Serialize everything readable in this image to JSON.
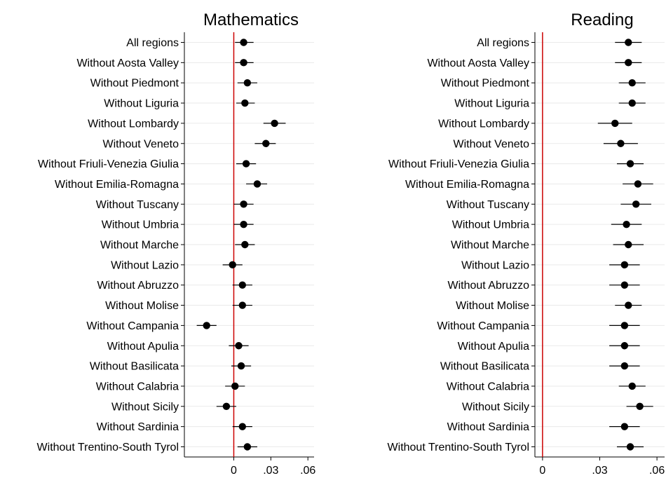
{
  "colors": {
    "zero_line": "#cc0000",
    "grid": "#eaeaea",
    "axis": "#000000",
    "point": "#000000",
    "ci": "#000000"
  },
  "chart_data": [
    {
      "type": "scatter",
      "title": "Mathematics",
      "orientation": "horizontal-dot-whisker",
      "xlim": [
        -0.04,
        0.065
      ],
      "xticks": [
        0,
        0.03,
        0.06
      ],
      "xtick_labels": [
        "0",
        ".03",
        ".06"
      ],
      "reference_line": 0,
      "grid": true,
      "categories": [
        "All regions",
        "Without Aosta Valley",
        "Without Piedmont",
        "Without Liguria",
        "Without Lombardy",
        "Without Veneto",
        "Without Friuli-Venezia Giulia",
        "Without Emilia-Romagna",
        "Without Tuscany",
        "Without Umbria",
        "Without Marche",
        "Without Lazio",
        "Without Abruzzo",
        "Without Molise",
        "Without Campania",
        "Without Apulia",
        "Without Basilicata",
        "Without Calabria",
        "Without Sicily",
        "Without Sardinia",
        "Without Trentino-South Tyrol"
      ],
      "values": [
        0.008,
        0.008,
        0.011,
        0.009,
        0.033,
        0.026,
        0.01,
        0.019,
        0.008,
        0.008,
        0.009,
        -0.001,
        0.007,
        0.007,
        -0.022,
        0.004,
        0.006,
        0.001,
        -0.006,
        0.007,
        0.011
      ],
      "ci_low": [
        0.001,
        0.001,
        0.003,
        0.002,
        0.024,
        0.017,
        0.002,
        0.01,
        0.0,
        0.0,
        0.001,
        -0.009,
        -0.001,
        -0.001,
        -0.03,
        -0.004,
        -0.002,
        -0.007,
        -0.014,
        -0.001,
        0.003
      ],
      "ci_high": [
        0.016,
        0.016,
        0.019,
        0.017,
        0.042,
        0.034,
        0.018,
        0.027,
        0.016,
        0.016,
        0.017,
        0.007,
        0.015,
        0.015,
        -0.014,
        0.012,
        0.014,
        0.009,
        0.002,
        0.015,
        0.019
      ]
    },
    {
      "type": "scatter",
      "title": "Reading",
      "orientation": "horizontal-dot-whisker",
      "xlim": [
        -0.004,
        0.064
      ],
      "xticks": [
        0,
        0.03,
        0.06
      ],
      "xtick_labels": [
        "0",
        ".03",
        ".06"
      ],
      "reference_line": 0,
      "grid": true,
      "categories": [
        "All regions",
        "Without Aosta Valley",
        "Without Piedmont",
        "Without Liguria",
        "Without Lombardy",
        "Without Veneto",
        "Without Friuli-Venezia Giulia",
        "Without Emilia-Romagna",
        "Without Tuscany",
        "Without Umbria",
        "Without Marche",
        "Without Lazio",
        "Without Abruzzo",
        "Without Molise",
        "Without Campania",
        "Without Apulia",
        "Without Basilicata",
        "Without Calabria",
        "Without Sicily",
        "Without Sardinia",
        "Without Trentino-South Tyrol"
      ],
      "values": [
        0.045,
        0.045,
        0.047,
        0.047,
        0.038,
        0.041,
        0.046,
        0.05,
        0.049,
        0.044,
        0.045,
        0.043,
        0.043,
        0.045,
        0.043,
        0.043,
        0.043,
        0.047,
        0.051,
        0.043,
        0.046
      ],
      "ci_low": [
        0.038,
        0.038,
        0.04,
        0.04,
        0.029,
        0.032,
        0.039,
        0.042,
        0.041,
        0.036,
        0.037,
        0.035,
        0.035,
        0.038,
        0.035,
        0.035,
        0.035,
        0.04,
        0.044,
        0.035,
        0.039
      ],
      "ci_high": [
        0.052,
        0.052,
        0.054,
        0.054,
        0.047,
        0.05,
        0.053,
        0.058,
        0.057,
        0.052,
        0.053,
        0.051,
        0.051,
        0.052,
        0.051,
        0.051,
        0.051,
        0.054,
        0.058,
        0.051,
        0.053
      ]
    }
  ]
}
